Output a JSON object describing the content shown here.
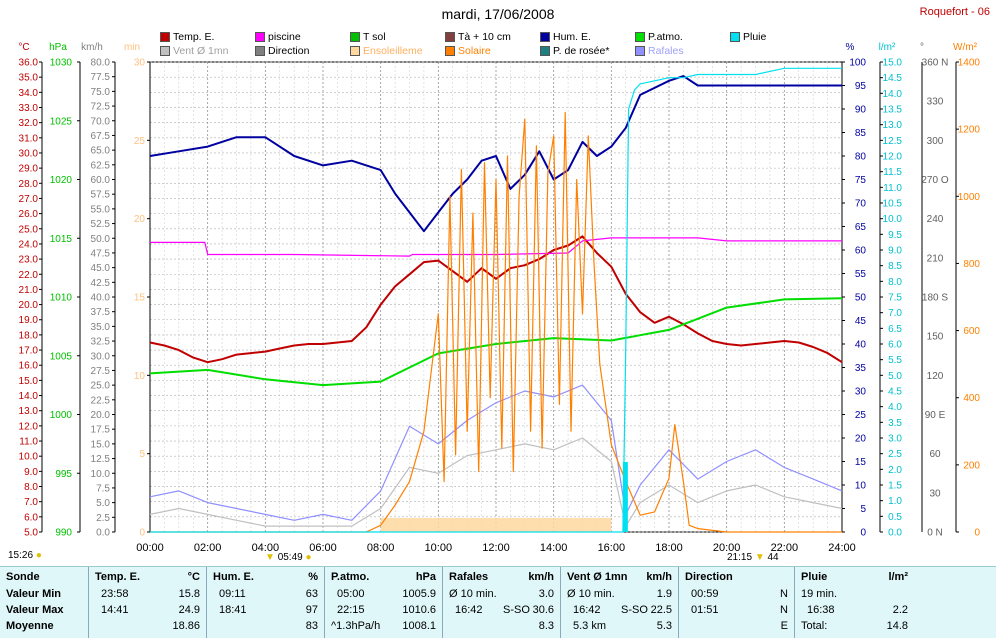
{
  "title": "mardi, 17/06/2008",
  "station": "Roquefort - 06",
  "legend": [
    {
      "label": "Temp. E.",
      "color": "#c00000",
      "style": "box"
    },
    {
      "label": "piscine",
      "color": "#ff00ff",
      "style": "box"
    },
    {
      "label": "T sol",
      "color": "#00c000",
      "style": "box"
    },
    {
      "label": "Tà + 10 cm",
      "color": "#804040",
      "style": "box"
    },
    {
      "label": "Hum. E.",
      "color": "#0000a0",
      "style": "box"
    },
    {
      "label": "P.atmo.",
      "color": "#00e000",
      "style": "box"
    },
    {
      "label": "Pluie",
      "color": "#00e0f0",
      "style": "box"
    },
    {
      "label": "Vent Ø 1mn",
      "color": "#c0c0c0",
      "style": "box"
    },
    {
      "label": "Direction",
      "color": "#808080",
      "style": "box"
    },
    {
      "label": "Ensoleilleme",
      "color": "#ffd8a0",
      "style": "box"
    },
    {
      "label": "Solaire",
      "color": "#ff8000",
      "style": "box"
    },
    {
      "label": "P. de rosée*",
      "color": "#208080",
      "style": "box"
    },
    {
      "label": "Rafales",
      "color": "#9090ff",
      "style": "box"
    }
  ],
  "chart_data": {
    "type": "line",
    "x_ticks": [
      "00:00",
      "02:00",
      "04:00",
      "06:00",
      "08:00",
      "10:00",
      "12:00",
      "14:00",
      "16:00",
      "18:00",
      "20:00",
      "22:00",
      "24:00"
    ],
    "axes": {
      "temp": {
        "unit": "°C",
        "min": 5.0,
        "max": 36.0,
        "step": 0.5,
        "color": "#c00000"
      },
      "pressure": {
        "unit": "hPa",
        "min": 990,
        "max": 1030,
        "step": 5,
        "color": "#00c000"
      },
      "wind": {
        "unit": "km/h",
        "min": 0.0,
        "max": 80.0,
        "step": 2.5,
        "color": "#808080"
      },
      "sun_minutes": {
        "unit": "min",
        "min": 0,
        "max": 30,
        "step": 5,
        "color": "#ffc080"
      },
      "humidity": {
        "unit": "%",
        "min": 0,
        "max": 100,
        "step": 5,
        "color": "#0000a0"
      },
      "rain": {
        "unit": "l/m²",
        "min": 0.0,
        "max": 15.0,
        "step": 0.5,
        "color": "#00c0d0"
      },
      "direction": {
        "unit": "°",
        "ticks": [
          "0 N",
          "30",
          "60",
          "90 E",
          "120",
          "150",
          "180 S",
          "210",
          "240",
          "270 O",
          "300",
          "330",
          "360 N"
        ],
        "color": "#808080"
      },
      "solar": {
        "unit": "W/m²",
        "min": 0,
        "max": 1400,
        "step": 200,
        "color": "#ff8000"
      }
    },
    "series": [
      {
        "name": "Temp. E.",
        "axis": "temp",
        "color": "#c00000",
        "x": [
          0,
          0.5,
          1,
          1.5,
          2,
          2.5,
          3,
          3.5,
          4,
          4.5,
          5,
          5.5,
          6,
          6.5,
          7,
          7.5,
          8,
          8.5,
          9,
          9.5,
          10,
          10.5,
          11,
          11.5,
          12,
          12.5,
          13,
          13.5,
          14,
          14.5,
          15,
          15.5,
          16,
          16.5,
          17,
          17.5,
          18,
          18.5,
          19,
          19.5,
          20,
          20.5,
          21,
          21.5,
          22,
          22.5,
          23,
          23.5,
          24
        ],
        "y": [
          17.5,
          17.3,
          17.0,
          16.5,
          16.2,
          16.4,
          16.7,
          16.8,
          16.9,
          17.1,
          17.3,
          17.4,
          17.4,
          17.5,
          17.6,
          18.5,
          20.0,
          21.2,
          22.0,
          22.8,
          22.9,
          22.2,
          21.5,
          22.4,
          21.7,
          22.4,
          22.6,
          23.0,
          23.6,
          23.9,
          24.5,
          23.4,
          22.5,
          20.7,
          19.5,
          18.8,
          19.2,
          18.7,
          18.1,
          17.6,
          17.4,
          17.3,
          17.4,
          17.5,
          17.6,
          17.5,
          17.2,
          16.8,
          16.2
        ]
      },
      {
        "name": "piscine",
        "axis": "temp",
        "color": "#ff00ff",
        "x": [
          0,
          1.9,
          2.0,
          5.0,
          9.0,
          9.1,
          12.0,
          14.5,
          15.0,
          16.0,
          17.5,
          19.0,
          20.0,
          22.0,
          24
        ],
        "y": [
          24.1,
          24.1,
          23.3,
          23.3,
          23.2,
          23.3,
          23.3,
          23.4,
          24.2,
          24.4,
          24.4,
          24.4,
          24.2,
          24.2,
          24.2
        ]
      },
      {
        "name": "T sol",
        "axis": "pressure",
        "color": "#00dd00",
        "x": [
          0,
          2,
          4,
          6,
          8,
          10,
          12,
          14,
          16,
          18,
          20,
          22,
          24
        ],
        "y": [
          1003.5,
          1003.8,
          1003.0,
          1002.5,
          1002.8,
          1005.2,
          1006.0,
          1006.5,
          1006.3,
          1007.2,
          1009.1,
          1009.8,
          1009.9
        ]
      },
      {
        "name": "Hum. E.",
        "axis": "humidity",
        "color": "#0000a0",
        "x": [
          0,
          1,
          2,
          3,
          4,
          5,
          6,
          7,
          8,
          8.5,
          9,
          9.5,
          10,
          10.5,
          11,
          11.5,
          12,
          12.5,
          13,
          13.5,
          14,
          14.5,
          15,
          15.5,
          16,
          16.5,
          17,
          18,
          18.5,
          19,
          20,
          22,
          24
        ],
        "y": [
          80,
          81,
          82,
          84,
          84,
          80,
          78,
          79,
          77,
          72,
          68,
          64,
          68,
          72,
          75,
          79,
          80,
          73,
          76,
          81,
          75,
          77,
          83,
          80,
          82,
          86,
          93,
          96,
          97,
          95,
          95,
          95,
          95
        ]
      },
      {
        "name": "Rafales",
        "axis": "wind",
        "color": "#9090ff",
        "x": [
          0,
          1,
          2,
          3,
          4,
          5,
          6,
          7,
          8,
          9,
          10,
          11,
          12,
          13,
          14,
          15,
          16,
          16.5,
          17,
          18,
          19,
          20,
          21,
          22,
          23,
          24
        ],
        "y": [
          6,
          7,
          5,
          4,
          3,
          2,
          3,
          2,
          7,
          18,
          15,
          19,
          22,
          24,
          23,
          25,
          19,
          3,
          8,
          14,
          9,
          12,
          14,
          11,
          9,
          7
        ]
      },
      {
        "name": "Vent Ø 1mn",
        "axis": "wind",
        "color": "#c0c0c0",
        "x": [
          0,
          1,
          2,
          3,
          4,
          5,
          6,
          7,
          8,
          9,
          10,
          11,
          12,
          13,
          14,
          15,
          16,
          16.5,
          17,
          18,
          19,
          20,
          21,
          22,
          23,
          24
        ],
        "y": [
          3,
          4,
          3,
          2,
          1,
          1,
          1,
          1,
          4,
          11,
          10,
          13,
          14,
          15,
          14,
          16,
          12,
          1,
          5,
          8,
          5,
          7,
          8,
          6,
          5,
          4
        ]
      },
      {
        "name": "Solaire",
        "axis": "solar",
        "color": "#ff8000",
        "x": [
          0,
          7.5,
          8,
          8.5,
          9,
          9.5,
          10,
          10.2,
          10.4,
          10.6,
          10.8,
          11,
          11.2,
          11.4,
          11.6,
          11.8,
          12,
          12.2,
          12.4,
          12.6,
          12.8,
          13,
          13.2,
          13.4,
          13.6,
          13.8,
          14,
          14.2,
          14.4,
          14.6,
          14.8,
          15,
          15.2,
          15.4,
          15.6,
          16,
          16.5,
          17,
          17.5,
          18,
          18.2,
          18.5,
          18.7,
          19,
          20,
          21,
          24
        ],
        "y": [
          0,
          0,
          20,
          80,
          150,
          300,
          650,
          150,
          1000,
          230,
          1080,
          300,
          950,
          180,
          1100,
          400,
          1050,
          250,
          1120,
          180,
          1000,
          1230,
          300,
          1150,
          250,
          1070,
          1180,
          380,
          1250,
          300,
          1050,
          650,
          1180,
          800,
          500,
          260,
          150,
          50,
          60,
          160,
          320,
          150,
          20,
          10,
          0,
          0,
          0
        ]
      },
      {
        "name": "Pluie",
        "axis": "rain",
        "color": "#00e0f0",
        "x": [
          0,
          16.2,
          16.4,
          16.5,
          16.6,
          16.8,
          17,
          17.5,
          18,
          18.5,
          19,
          20,
          21,
          22,
          23,
          24
        ],
        "y": [
          0,
          0,
          0.0,
          6.0,
          13.5,
          14.1,
          14.3,
          14.4,
          14.5,
          14.5,
          14.6,
          14.6,
          14.6,
          14.8,
          14.8,
          14.8
        ]
      }
    ]
  },
  "sun_times": {
    "left_time": "15:26",
    "sunrise": "05:49",
    "sunset": "21:15",
    "right_time": "44"
  },
  "summary": {
    "row_labels": [
      "Sonde",
      "Valeur Min",
      "Valeur Max",
      "Moyenne"
    ],
    "temp": {
      "title": "Temp. E.",
      "unit": "°C",
      "min_time": "23:58",
      "min": "15.8",
      "max_time": "14:41",
      "max": "24.9",
      "avg": "18.86"
    },
    "hum": {
      "title": "Hum. E.",
      "unit": "%",
      "min_time": "09:11",
      "min": "63",
      "max_time": "18:41",
      "max": "97",
      "avg": "83"
    },
    "patmo": {
      "title": "P.atmo.",
      "unit": "hPa",
      "min_time": "05:00",
      "min": "1005.9",
      "max_time": "22:15",
      "max": "1010.6",
      "avg_note": "^1.3hPa/h",
      "avg": "1008.1"
    },
    "rafales": {
      "title": "Rafales",
      "unit": "km/h",
      "r1_label": "Ø 10 min.",
      "r1_val": "3.0",
      "r2_time": "16:42",
      "r2_dir": "S-SO",
      "r2_val": "30.6",
      "avg": "8.3"
    },
    "vent": {
      "title": "Vent Ø 1mn",
      "unit": "km/h",
      "r1_label": "Ø 10 min.",
      "r1_val": "1.9",
      "r2_time": "16:42",
      "r2_dir": "S-SO",
      "r2_val": "22.5",
      "r3_label": "5.3 km",
      "avg": "5.3"
    },
    "direction": {
      "title": "Direction",
      "r1_time": "00:59",
      "r1_val": "N",
      "r2_time": "01:51",
      "r2_val": "N",
      "avg": "E"
    },
    "pluie": {
      "title": "Pluie",
      "unit": "l/m²",
      "r1_label": "19 min.",
      "r2_time": "16:38",
      "r2_val": "2.2",
      "total_label": "Total:",
      "total": "14.8"
    }
  }
}
